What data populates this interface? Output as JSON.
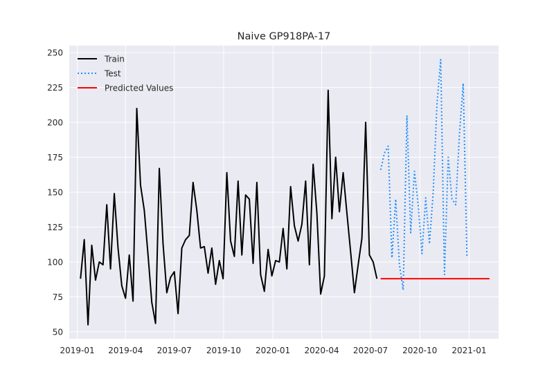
{
  "chart_data": {
    "type": "line",
    "title": "Naive GP918PA-17",
    "xlabel": "",
    "ylabel": "",
    "xlim": [
      "2018-12-17",
      "2021-02-25"
    ],
    "ylim": [
      45,
      255
    ],
    "grid": true,
    "legend_position": "top-left",
    "x_ticks": [
      "2019-01-01",
      "2019-04-01",
      "2019-07-01",
      "2019-10-01",
      "2020-01-01",
      "2020-04-01",
      "2020-07-01",
      "2020-10-01",
      "2021-01-01"
    ],
    "x_tick_labels": [
      "2019-01",
      "2019-04",
      "2019-07",
      "2019-10",
      "2020-01",
      "2020-04",
      "2020-07",
      "2020-10",
      "2021-01"
    ],
    "y_ticks": [
      50,
      75,
      100,
      125,
      150,
      175,
      200,
      225,
      250
    ],
    "y_tick_labels": [
      "50",
      "75",
      "100",
      "125",
      "150",
      "175",
      "200",
      "225",
      "250"
    ],
    "series": [
      {
        "name": "Train",
        "color": "#000000",
        "style": "solid",
        "points": [
          [
            "2019-01-07",
            88
          ],
          [
            "2019-01-14",
            116
          ],
          [
            "2019-01-21",
            55
          ],
          [
            "2019-01-28",
            112
          ],
          [
            "2019-02-04",
            87
          ],
          [
            "2019-02-11",
            100
          ],
          [
            "2019-02-18",
            98
          ],
          [
            "2019-02-25",
            141
          ],
          [
            "2019-03-04",
            95
          ],
          [
            "2019-03-11",
            149
          ],
          [
            "2019-03-18",
            110
          ],
          [
            "2019-03-25",
            83
          ],
          [
            "2019-04-01",
            74
          ],
          [
            "2019-04-08",
            105
          ],
          [
            "2019-04-15",
            72
          ],
          [
            "2019-04-22",
            210
          ],
          [
            "2019-04-29",
            155
          ],
          [
            "2019-05-06",
            137
          ],
          [
            "2019-05-13",
            105
          ],
          [
            "2019-05-20",
            71
          ],
          [
            "2019-05-27",
            56
          ],
          [
            "2019-06-03",
            167
          ],
          [
            "2019-06-10",
            113
          ],
          [
            "2019-06-17",
            78
          ],
          [
            "2019-06-24",
            89
          ],
          [
            "2019-07-01",
            93
          ],
          [
            "2019-07-08",
            63
          ],
          [
            "2019-07-15",
            110
          ],
          [
            "2019-07-22",
            116
          ],
          [
            "2019-07-29",
            119
          ],
          [
            "2019-08-05",
            157
          ],
          [
            "2019-08-12",
            137
          ],
          [
            "2019-08-19",
            110
          ],
          [
            "2019-08-26",
            111
          ],
          [
            "2019-09-02",
            92
          ],
          [
            "2019-09-09",
            110
          ],
          [
            "2019-09-16",
            84
          ],
          [
            "2019-09-23",
            101
          ],
          [
            "2019-09-30",
            88
          ],
          [
            "2019-10-07",
            164
          ],
          [
            "2019-10-14",
            115
          ],
          [
            "2019-10-21",
            104
          ],
          [
            "2019-10-28",
            158
          ],
          [
            "2019-11-04",
            105
          ],
          [
            "2019-11-11",
            148
          ],
          [
            "2019-11-18",
            145
          ],
          [
            "2019-11-25",
            99
          ],
          [
            "2019-12-02",
            157
          ],
          [
            "2019-12-09",
            91
          ],
          [
            "2019-12-16",
            79
          ],
          [
            "2019-12-23",
            109
          ],
          [
            "2019-12-30",
            90
          ],
          [
            "2020-01-06",
            101
          ],
          [
            "2020-01-13",
            100
          ],
          [
            "2020-01-20",
            124
          ],
          [
            "2020-01-27",
            95
          ],
          [
            "2020-02-03",
            154
          ],
          [
            "2020-02-10",
            126
          ],
          [
            "2020-02-17",
            115
          ],
          [
            "2020-02-24",
            127
          ],
          [
            "2020-03-02",
            158
          ],
          [
            "2020-03-09",
            98
          ],
          [
            "2020-03-16",
            170
          ],
          [
            "2020-03-23",
            135
          ],
          [
            "2020-03-30",
            77
          ],
          [
            "2020-04-06",
            90
          ],
          [
            "2020-04-13",
            223
          ],
          [
            "2020-04-20",
            131
          ],
          [
            "2020-04-27",
            175
          ],
          [
            "2020-05-04",
            136
          ],
          [
            "2020-05-11",
            164
          ],
          [
            "2020-05-18",
            135
          ],
          [
            "2020-05-25",
            107
          ],
          [
            "2020-06-01",
            78
          ],
          [
            "2020-06-08",
            98
          ],
          [
            "2020-06-15",
            117
          ],
          [
            "2020-06-22",
            200
          ],
          [
            "2020-06-29",
            105
          ],
          [
            "2020-07-06",
            100
          ],
          [
            "2020-07-13",
            88
          ]
        ]
      },
      {
        "name": "Test",
        "color": "#1f8fff",
        "style": "dotted",
        "points": [
          [
            "2020-07-20",
            166
          ],
          [
            "2020-07-27",
            178
          ],
          [
            "2020-08-03",
            183
          ],
          [
            "2020-08-10",
            103
          ],
          [
            "2020-08-17",
            145
          ],
          [
            "2020-08-24",
            98
          ],
          [
            "2020-08-31",
            80
          ],
          [
            "2020-09-07",
            205
          ],
          [
            "2020-09-14",
            121
          ],
          [
            "2020-09-21",
            165
          ],
          [
            "2020-09-28",
            141
          ],
          [
            "2020-10-05",
            106
          ],
          [
            "2020-10-12",
            146
          ],
          [
            "2020-10-19",
            113
          ],
          [
            "2020-10-26",
            150
          ],
          [
            "2020-11-02",
            213
          ],
          [
            "2020-11-09",
            245
          ],
          [
            "2020-11-16",
            91
          ],
          [
            "2020-11-23",
            175
          ],
          [
            "2020-11-30",
            145
          ],
          [
            "2020-12-07",
            141
          ],
          [
            "2020-12-14",
            192
          ],
          [
            "2020-12-21",
            228
          ],
          [
            "2020-12-28",
            103
          ]
        ]
      },
      {
        "name": "Predicted Values",
        "color": "#ff0000",
        "style": "solid",
        "points": [
          [
            "2020-07-20",
            88
          ],
          [
            "2021-02-08",
            88
          ]
        ]
      }
    ]
  }
}
